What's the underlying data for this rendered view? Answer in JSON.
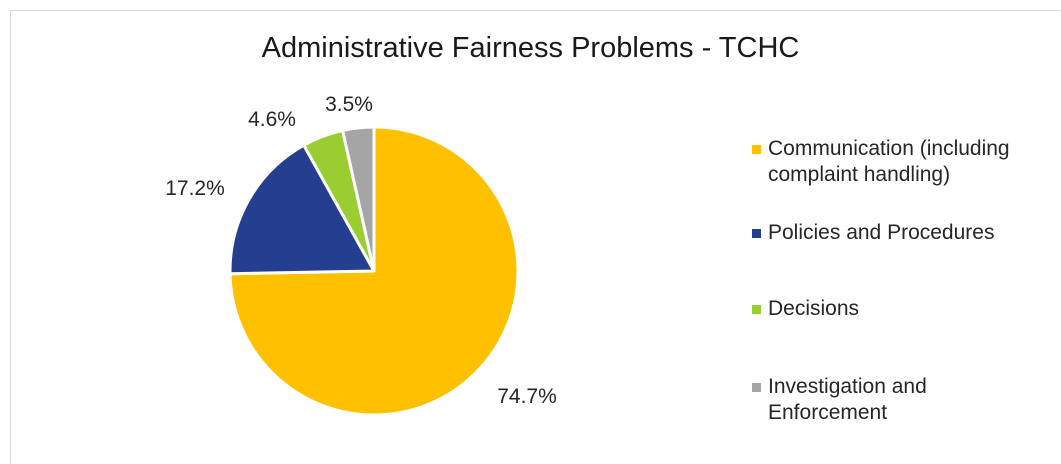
{
  "chart_data": {
    "type": "pie",
    "title": "Administrative Fairness Problems - TCHC",
    "categories": [
      "Communication (including complaint handling)",
      "Policies and Procedures",
      "Decisions",
      "Investigation and Enforcement"
    ],
    "values": [
      74.7,
      17.2,
      4.6,
      3.5
    ],
    "value_labels": [
      "74.7%",
      "17.2%",
      "4.6%",
      "3.5%"
    ],
    "colors": [
      "#FFC000",
      "#243F8F",
      "#9ACD32",
      "#A5A5A5"
    ],
    "start_angle": "12 o'clock",
    "direction": "clockwise",
    "legend_position": "right"
  }
}
